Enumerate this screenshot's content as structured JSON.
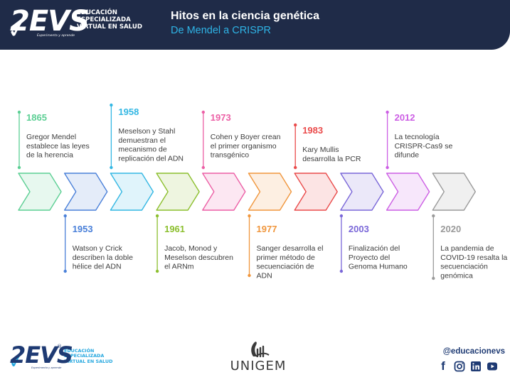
{
  "header": {
    "logo_mark": "2EVS",
    "logo_line1": "EDUCACIÓN",
    "logo_line2": "ESPECIALIZADA",
    "logo_line3": "VIRTUAL EN SALUD",
    "logo_tagline": "Experimenta y aprende",
    "title": "Hitos en la ciencia genética",
    "subtitle": "De Mendel a CRISPR"
  },
  "timeline": {
    "milestones": [
      {
        "year": "1865",
        "lines": [
          "Gregor Mendel",
          "establece las leyes",
          "de la herencia"
        ],
        "color": "#5ccf94"
      },
      {
        "year": "1953",
        "lines": [
          "Watson y Crick",
          "describen la doble",
          "hélice del ADN"
        ],
        "color": "#4a80d9"
      },
      {
        "year": "1958",
        "lines": [
          "Meselson y Stahl",
          "demuestran el",
          "mecanismo de",
          "replicación del ADN"
        ],
        "color": "#33b7e3"
      },
      {
        "year": "1961",
        "lines": [
          "Jacob, Monod y",
          "Meselson descubren",
          "el ARNm"
        ],
        "color": "#8cbf2e"
      },
      {
        "year": "1973",
        "lines": [
          "Cohen y Boyer crean",
          "el primer organismo",
          "transgénico"
        ],
        "color": "#ec5fa5"
      },
      {
        "year": "1977",
        "lines": [
          "Sanger desarrolla el",
          "primer método de",
          "secuenciación de",
          "ADN"
        ],
        "color": "#f0963c"
      },
      {
        "year": "1983",
        "lines": [
          "Kary Mullis",
          "desarrolla la PCR"
        ],
        "color": "#ea4b4b"
      },
      {
        "year": "2003",
        "lines": [
          "Finalización del",
          "Proyecto del",
          "Genoma Humano"
        ],
        "color": "#7a67d8"
      },
      {
        "year": "2012",
        "lines": [
          "La tecnología",
          "CRISPR-Cas9 se",
          "difunde"
        ],
        "color": "#cc5ee4"
      },
      {
        "year": "2020",
        "lines": [
          "La pandemia de",
          "COVID-19 resalta la",
          "secuenciación",
          "genómica"
        ],
        "color": "#9a9a9a"
      }
    ]
  },
  "footer": {
    "logo_mark": "2EVS",
    "logo_line1": "EDUCACIÓN",
    "logo_line2": "ESPECIALIZADA",
    "logo_line3": "VIRTUAL EN SALUD",
    "logo_tagline": "Experimenta y aprende",
    "registered": "®",
    "partner": "UNIGEM",
    "handle": "@educacionevs",
    "social_icons": [
      "facebook-icon",
      "instagram-icon",
      "linkedin-icon",
      "youtube-icon"
    ]
  },
  "colors": {
    "header_bg": "#1f2b48",
    "subtitle": "#2fb4e6",
    "brand_navy": "#1e3a73",
    "brand_light": "#27a8df",
    "text": "#3d3d3d"
  }
}
